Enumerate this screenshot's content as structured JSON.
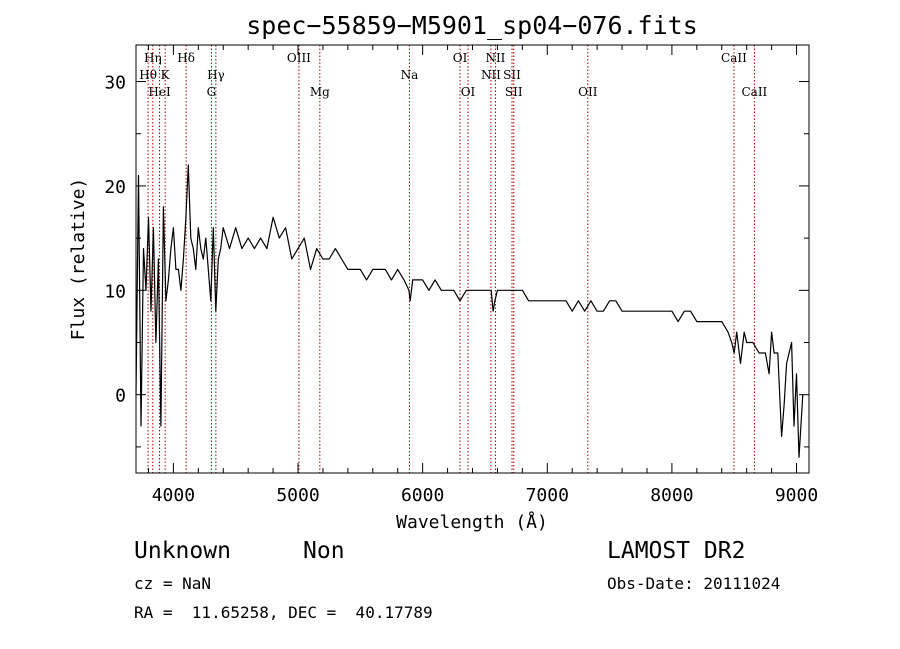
{
  "chart_data": {
    "type": "line",
    "title": "spec−55859−M5901_sp04−076.fits",
    "xlabel": "Wavelength (Å)",
    "ylabel": "Flux (relative)",
    "xlim": [
      3700,
      9100
    ],
    "ylim": [
      -7.5,
      33.5
    ],
    "x_ticks": [
      4000,
      5000,
      6000,
      7000,
      8000,
      9000
    ],
    "y_ticks": [
      0,
      10,
      20,
      30
    ],
    "grid": false,
    "series": [
      {
        "x": [
          3700,
          3720,
          3740,
          3760,
          3780,
          3800,
          3820,
          3840,
          3860,
          3880,
          3900,
          3920,
          3940,
          3960,
          3980,
          4000,
          4020,
          4040,
          4060,
          4080,
          4100,
          4120,
          4140,
          4160,
          4180,
          4200,
          4220,
          4240,
          4260,
          4280,
          4300,
          4320,
          4340,
          4360,
          4380,
          4400,
          4450,
          4500,
          4550,
          4600,
          4650,
          4700,
          4750,
          4800,
          4850,
          4900,
          4950,
          5000,
          5050,
          5100,
          5150,
          5200,
          5250,
          5300,
          5350,
          5400,
          5450,
          5500,
          5550,
          5600,
          5650,
          5700,
          5750,
          5800,
          5850,
          5890,
          5900,
          5920,
          5950,
          6000,
          6050,
          6100,
          6150,
          6200,
          6250,
          6300,
          6350,
          6400,
          6450,
          6500,
          6550,
          6565,
          6580,
          6600,
          6650,
          6700,
          6750,
          6800,
          6850,
          6900,
          6950,
          7000,
          7050,
          7100,
          7150,
          7200,
          7250,
          7300,
          7350,
          7400,
          7450,
          7500,
          7550,
          7600,
          7650,
          7700,
          7750,
          7800,
          7850,
          7900,
          7950,
          8000,
          8050,
          8100,
          8150,
          8200,
          8250,
          8300,
          8350,
          8400,
          8450,
          8480,
          8500,
          8520,
          8550,
          8580,
          8600,
          8650,
          8700,
          8750,
          8780,
          8800,
          8820,
          8850,
          8880,
          8900,
          8920,
          8940,
          8960,
          8980,
          9000,
          9020,
          9050
        ],
        "y": [
          0,
          21,
          -3,
          14,
          10,
          17,
          8,
          16,
          5,
          13,
          -3,
          18,
          9,
          11,
          14,
          16,
          12,
          12,
          10,
          13,
          17,
          22,
          15,
          14,
          12,
          16,
          14,
          13,
          15,
          12,
          9,
          16,
          8,
          13,
          14,
          16,
          14,
          16,
          14,
          15,
          14,
          15,
          14,
          17,
          15,
          16,
          13,
          14,
          15,
          12,
          14,
          13,
          13,
          14,
          13,
          12,
          12,
          12,
          11,
          12,
          12,
          12,
          11,
          12,
          11,
          10,
          9,
          11,
          11,
          11,
          10,
          11,
          10,
          10,
          10,
          9,
          10,
          10,
          10,
          10,
          10,
          8,
          9,
          10,
          10,
          10,
          10,
          10,
          9,
          9,
          9,
          9,
          9,
          9,
          9,
          8,
          9,
          8,
          9,
          8,
          8,
          9,
          9,
          8,
          8,
          8,
          8,
          8,
          8,
          8,
          8,
          8,
          7,
          8,
          8,
          7,
          7,
          7,
          7,
          7,
          6,
          5,
          4,
          6,
          3,
          6,
          5,
          5,
          4,
          4,
          2,
          6,
          4,
          4,
          -4,
          -1,
          3,
          4,
          5,
          -3,
          2,
          -6,
          0
        ]
      }
    ],
    "spectral_lines": [
      {
        "name": "Hη",
        "wavelength": 3835,
        "row": 1
      },
      {
        "name": "Hθ",
        "wavelength": 3797,
        "row": 2
      },
      {
        "name": "K",
        "wavelength": 3934,
        "row": 2
      },
      {
        "name": "HeI",
        "wavelength": 3889,
        "row": 3
      },
      {
        "name": "Hδ",
        "wavelength": 4102,
        "row": 1
      },
      {
        "name": "Hγ",
        "wavelength": 4341,
        "row": 2
      },
      {
        "name": "G",
        "wavelength": 4305,
        "row": 3
      },
      {
        "name": "OIII",
        "wavelength": 5007,
        "row": 1
      },
      {
        "name": "Mg",
        "wavelength": 5175,
        "row": 3
      },
      {
        "name": "Na",
        "wavelength": 5894,
        "row": 2
      },
      {
        "name": "OI",
        "wavelength": 6300,
        "row": 1
      },
      {
        "name": "OI",
        "wavelength": 6364,
        "row": 3
      },
      {
        "name": "NII",
        "wavelength": 6584,
        "row": 1
      },
      {
        "name": "NII",
        "wavelength": 6548,
        "row": 2
      },
      {
        "name": "SII",
        "wavelength": 6717,
        "row": 2
      },
      {
        "name": "SII",
        "wavelength": 6731,
        "row": 3
      },
      {
        "name": "OII",
        "wavelength": 7325,
        "row": 3
      },
      {
        "name": "CaII",
        "wavelength": 8498,
        "row": 1
      },
      {
        "name": "CaII",
        "wavelength": 8662,
        "row": 3
      }
    ],
    "spectral_line_color": "#a00000"
  },
  "info": {
    "class_label": "Unknown",
    "subclass_label": "Non",
    "survey_label": "LAMOST DR2",
    "cz_text": "cz = NaN",
    "obs_date_text": "Obs-Date: 20111024",
    "coords_text": "RA =  11.65258, DEC =  40.17789"
  }
}
